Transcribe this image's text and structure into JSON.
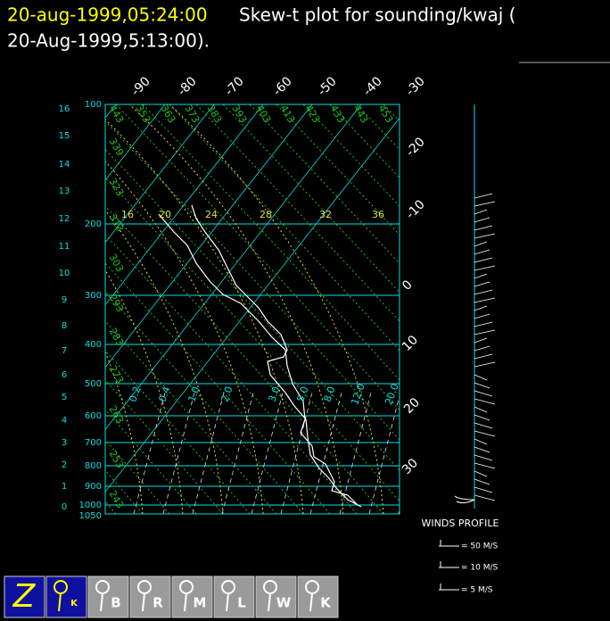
{
  "header": {
    "date": "20-aug-1999,05:24:00",
    "title_line1": "Skew-t plot for sounding/kwaj (",
    "title_line2": "20-Aug-1999,5:13:00)."
  },
  "plot": {
    "pressure_labels": [
      "100",
      "200",
      "300",
      "400",
      "500",
      "600",
      "700",
      "800",
      "900",
      "1000",
      "1050"
    ],
    "height_labels": [
      "16",
      "15",
      "14",
      "13",
      "12",
      "11",
      "10",
      "9",
      "8",
      "7",
      "6",
      "5",
      "4",
      "3",
      "2",
      "1",
      "0"
    ],
    "temperature_top_labels": [
      "-90",
      "-80",
      "-70",
      "-60",
      "-50",
      "-40",
      "-30"
    ],
    "temperature_right_labels": [
      "-20",
      "-10",
      "0",
      "10",
      "20",
      "30"
    ],
    "theta_top_labels": [
      "443",
      "353",
      "363",
      "373",
      "383",
      "393",
      "403",
      "413",
      "423",
      "433",
      "443",
      "453"
    ],
    "theta_left_labels": [
      "339",
      "323",
      "313",
      "303",
      "293",
      "283",
      "273",
      "263",
      "253",
      "243"
    ],
    "mixing_ratio_labels": [
      "0.2",
      "0.4",
      "1.0",
      "2.0",
      "3.0",
      "5.0",
      "8.0",
      "12.0",
      "20.0"
    ],
    "wet_bulb_labels": [
      "16",
      "20",
      "24",
      "28",
      "32",
      "36"
    ]
  },
  "winds": {
    "title": "WINDS PROFILE",
    "legend": [
      "= 50 M/S",
      "= 10 M/S",
      "= 5 M/S"
    ]
  },
  "toolbar": {
    "buttons": [
      "Z",
      "K",
      "B",
      "R",
      "M",
      "L",
      "W",
      "K"
    ]
  }
}
